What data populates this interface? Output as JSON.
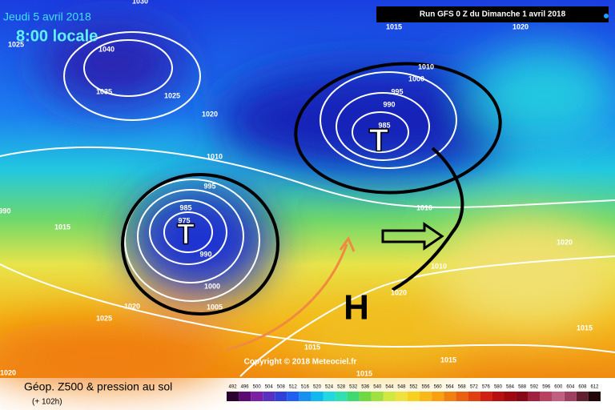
{
  "header": {
    "valid_date": "Jeudi 5 avril 2018",
    "valid_time": "8:00 locale",
    "run": "Run GFS 0 Z du Dimanche 1 avril 2018"
  },
  "copyright": "Copyright © 2018 Meteociel.fr",
  "footer": {
    "title": "Géop. Z500 & pression au sol",
    "lead": "(+ 102h)"
  },
  "systems": {
    "high": "H",
    "lows": [
      "T",
      "T"
    ]
  },
  "isobar_labels": [
    "1030",
    "1015",
    "1020",
    "1025",
    "1040",
    "1035",
    "1025",
    "1020",
    "1000",
    "1010",
    "995",
    "990",
    "985",
    "1010",
    "995",
    "985",
    "975",
    "990",
    "1000",
    "1005",
    "1020",
    "1025",
    "1020",
    "990",
    "1010",
    "1010",
    "1020",
    "1020",
    "1015",
    "1015",
    "1015",
    "1015",
    "1015"
  ],
  "legend": {
    "values": [
      "492",
      "496",
      "500",
      "504",
      "508",
      "512",
      "516",
      "520",
      "524",
      "528",
      "532",
      "536",
      "540",
      "544",
      "548",
      "552",
      "556",
      "560",
      "564",
      "568",
      "572",
      "576",
      "580",
      "584",
      "588",
      "592",
      "596",
      "600",
      "604",
      "608",
      "612"
    ]
  }
}
